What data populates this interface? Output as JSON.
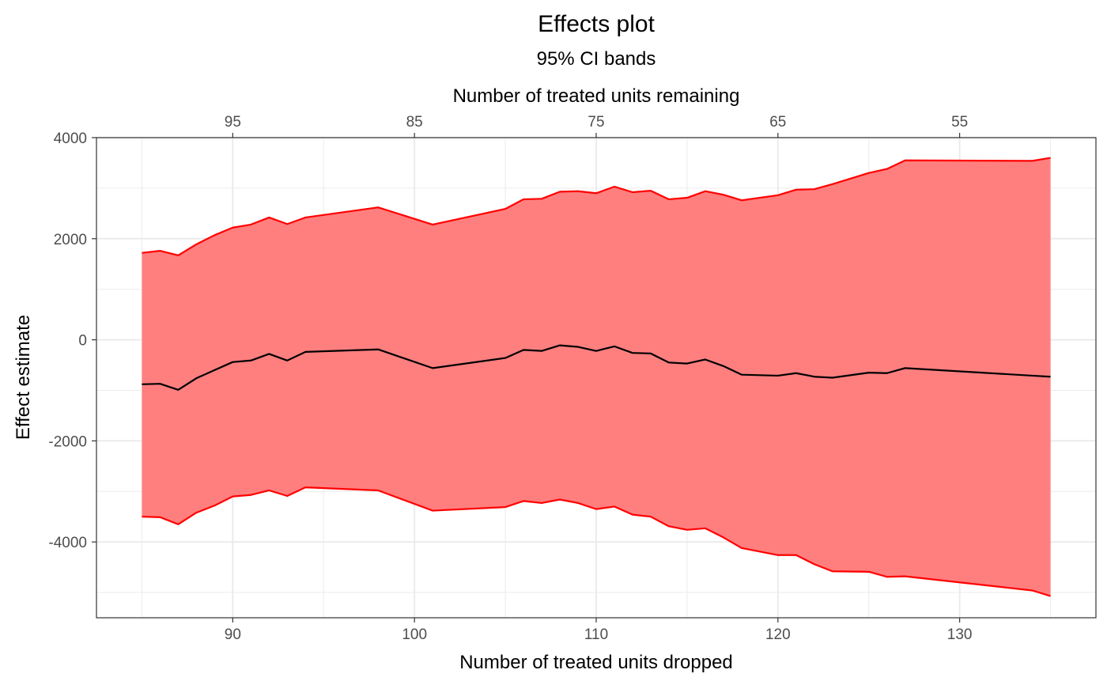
{
  "chart_data": {
    "type": "area",
    "title": "Effects plot",
    "subtitle": "95% CI bands",
    "xlabel": "Number of treated units dropped",
    "ylabel": "Effect estimate",
    "x2label": "Number of treated units remaining",
    "xlim": [
      82.5,
      137.5
    ],
    "ylim": [
      -5500,
      4000
    ],
    "x_ticks": [
      90,
      100,
      110,
      120,
      130
    ],
    "x_tick_labels": [
      "90",
      "100",
      "110",
      "120",
      "130"
    ],
    "y_ticks": [
      4000,
      2000,
      0,
      -2000,
      -4000
    ],
    "y_tick_labels": [
      "4000",
      "2000",
      "0",
      "-2000",
      "-4000"
    ],
    "x2_ticks": [
      90,
      100,
      110,
      120,
      130
    ],
    "x2_tick_labels": [
      "95",
      "85",
      "75",
      "65",
      "55"
    ],
    "grid": true,
    "colors": {
      "band_fill": "#ff7f7f",
      "band_line": "#ff0000",
      "estimate_line": "#000000",
      "grid": "#ebebeb"
    },
    "x": [
      85,
      86,
      87,
      88,
      89,
      90,
      91,
      92,
      93,
      94,
      98,
      101,
      105,
      106,
      107,
      108,
      109,
      110,
      111,
      112,
      113,
      114,
      115,
      116,
      117,
      118,
      120,
      121,
      122,
      123,
      125,
      126,
      127,
      134,
      135
    ],
    "series": [
      {
        "values": [
          1720,
          1760,
          1670,
          1890,
          2070,
          2220,
          2280,
          2420,
          2290,
          2420,
          2620,
          2280,
          2590,
          2780,
          2790,
          2930,
          2940,
          2900,
          3030,
          2920,
          2950,
          2780,
          2810,
          2940,
          2870,
          2760,
          2860,
          2970,
          2980,
          3080,
          3300,
          3380,
          3550,
          3540,
          3600
        ]
      },
      {
        "values": [
          -880,
          -870,
          -990,
          -760,
          -600,
          -440,
          -410,
          -280,
          -410,
          -240,
          -190,
          -560,
          -360,
          -200,
          -220,
          -110,
          -140,
          -220,
          -130,
          -260,
          -270,
          -450,
          -470,
          -390,
          -520,
          -690,
          -710,
          -660,
          -730,
          -750,
          -650,
          -660,
          -560,
          -710,
          -730
        ]
      },
      {
        "values": [
          -3500,
          -3510,
          -3650,
          -3420,
          -3280,
          -3100,
          -3070,
          -2980,
          -3090,
          -2920,
          -2980,
          -3380,
          -3310,
          -3190,
          -3230,
          -3160,
          -3230,
          -3350,
          -3300,
          -3460,
          -3500,
          -3690,
          -3760,
          -3730,
          -3910,
          -4120,
          -4260,
          -4260,
          -4440,
          -4580,
          -4590,
          -4690,
          -4680,
          -4960,
          -5070
        ]
      }
    ]
  }
}
